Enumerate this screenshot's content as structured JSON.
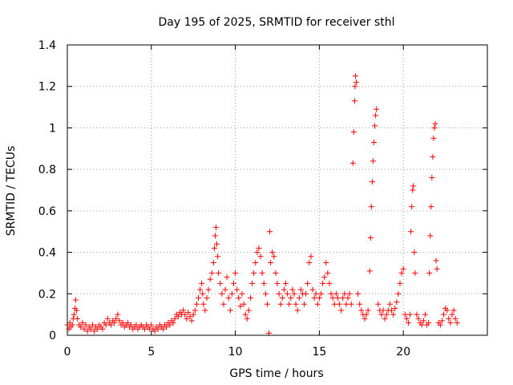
{
  "chart_data": {
    "type": "scatter",
    "title": "Day 195 of 2025, SRMTID for receiver sthl",
    "xlabel": "GPS time / hours",
    "ylabel": "SRMTID / TECUs",
    "xlim": [
      0,
      25
    ],
    "ylim": [
      0,
      1.4
    ],
    "x_ticks": [
      "0",
      "5",
      "10",
      "15",
      "20"
    ],
    "y_ticks": [
      "0",
      "0.2",
      "0.4",
      "0.6",
      "0.8",
      "1",
      "1.2",
      "1.4"
    ],
    "grid": true,
    "marker": "+",
    "series": [
      {
        "name": "sthl",
        "color": "#ff0000",
        "points": [
          [
            0.0,
            0.05
          ],
          [
            0.1,
            0.03
          ],
          [
            0.15,
            0.06
          ],
          [
            0.2,
            0.04
          ],
          [
            0.3,
            0.05
          ],
          [
            0.35,
            0.08
          ],
          [
            0.4,
            0.1
          ],
          [
            0.45,
            0.13
          ],
          [
            0.5,
            0.17
          ],
          [
            0.55,
            0.12
          ],
          [
            0.6,
            0.08
          ],
          [
            0.7,
            0.05
          ],
          [
            0.8,
            0.04
          ],
          [
            0.9,
            0.06
          ],
          [
            1.0,
            0.03
          ],
          [
            1.1,
            0.05
          ],
          [
            1.2,
            0.02
          ],
          [
            1.3,
            0.04
          ],
          [
            1.4,
            0.03
          ],
          [
            1.5,
            0.05
          ],
          [
            1.6,
            0.02
          ],
          [
            1.7,
            0.04
          ],
          [
            1.8,
            0.03
          ],
          [
            1.9,
            0.05
          ],
          [
            2.0,
            0.04
          ],
          [
            2.1,
            0.03
          ],
          [
            2.2,
            0.06
          ],
          [
            2.3,
            0.05
          ],
          [
            2.4,
            0.08
          ],
          [
            2.5,
            0.06
          ],
          [
            2.6,
            0.05
          ],
          [
            2.7,
            0.07
          ],
          [
            2.8,
            0.06
          ],
          [
            2.9,
            0.08
          ],
          [
            3.0,
            0.1
          ],
          [
            3.1,
            0.07
          ],
          [
            3.2,
            0.05
          ],
          [
            3.3,
            0.06
          ],
          [
            3.4,
            0.04
          ],
          [
            3.5,
            0.05
          ],
          [
            3.6,
            0.06
          ],
          [
            3.7,
            0.04
          ],
          [
            3.8,
            0.05
          ],
          [
            3.9,
            0.03
          ],
          [
            4.0,
            0.04
          ],
          [
            4.1,
            0.05
          ],
          [
            4.2,
            0.03
          ],
          [
            4.3,
            0.04
          ],
          [
            4.4,
            0.05
          ],
          [
            4.5,
            0.04
          ],
          [
            4.6,
            0.03
          ],
          [
            4.7,
            0.05
          ],
          [
            4.8,
            0.04
          ],
          [
            4.9,
            0.03
          ],
          [
            5.0,
            0.05
          ],
          [
            5.1,
            0.03
          ],
          [
            5.2,
            0.02
          ],
          [
            5.3,
            0.04
          ],
          [
            5.4,
            0.03
          ],
          [
            5.5,
            0.05
          ],
          [
            5.6,
            0.04
          ],
          [
            5.7,
            0.03
          ],
          [
            5.8,
            0.05
          ],
          [
            5.9,
            0.04
          ],
          [
            6.0,
            0.06
          ],
          [
            6.1,
            0.05
          ],
          [
            6.2,
            0.07
          ],
          [
            6.3,
            0.06
          ],
          [
            6.4,
            0.08
          ],
          [
            6.5,
            0.1
          ],
          [
            6.6,
            0.09
          ],
          [
            6.7,
            0.11
          ],
          [
            6.8,
            0.1
          ],
          [
            6.9,
            0.12
          ],
          [
            7.0,
            0.1
          ],
          [
            7.1,
            0.08
          ],
          [
            7.2,
            0.11
          ],
          [
            7.3,
            0.09
          ],
          [
            7.4,
            0.07
          ],
          [
            7.5,
            0.1
          ],
          [
            7.6,
            0.12
          ],
          [
            7.7,
            0.15
          ],
          [
            7.8,
            0.18
          ],
          [
            7.9,
            0.22
          ],
          [
            8.0,
            0.25
          ],
          [
            8.05,
            0.2
          ],
          [
            8.1,
            0.15
          ],
          [
            8.2,
            0.12
          ],
          [
            8.3,
            0.18
          ],
          [
            8.4,
            0.22
          ],
          [
            8.5,
            0.27
          ],
          [
            8.6,
            0.3
          ],
          [
            8.7,
            0.35
          ],
          [
            8.75,
            0.42
          ],
          [
            8.8,
            0.48
          ],
          [
            8.85,
            0.52
          ],
          [
            8.9,
            0.44
          ],
          [
            8.95,
            0.38
          ],
          [
            9.0,
            0.3
          ],
          [
            9.1,
            0.25
          ],
          [
            9.2,
            0.2
          ],
          [
            9.3,
            0.15
          ],
          [
            9.4,
            0.22
          ],
          [
            9.5,
            0.28
          ],
          [
            9.6,
            0.18
          ],
          [
            9.7,
            0.12
          ],
          [
            9.8,
            0.2
          ],
          [
            9.9,
            0.25
          ],
          [
            10.0,
            0.3
          ],
          [
            10.1,
            0.22
          ],
          [
            10.2,
            0.18
          ],
          [
            10.3,
            0.14
          ],
          [
            10.4,
            0.2
          ],
          [
            10.5,
            0.15
          ],
          [
            10.6,
            0.1
          ],
          [
            10.7,
            0.08
          ],
          [
            10.8,
            0.12
          ],
          [
            10.9,
            0.18
          ],
          [
            11.0,
            0.25
          ],
          [
            11.1,
            0.3
          ],
          [
            11.2,
            0.35
          ],
          [
            11.3,
            0.4
          ],
          [
            11.4,
            0.42
          ],
          [
            11.5,
            0.38
          ],
          [
            11.6,
            0.3
          ],
          [
            11.7,
            0.25
          ],
          [
            11.8,
            0.2
          ],
          [
            11.9,
            0.15
          ],
          [
            12.0,
            0.01
          ],
          [
            12.05,
            0.5
          ],
          [
            12.1,
            0.35
          ],
          [
            12.2,
            0.4
          ],
          [
            12.3,
            0.38
          ],
          [
            12.4,
            0.3
          ],
          [
            12.5,
            0.25
          ],
          [
            12.6,
            0.2
          ],
          [
            12.7,
            0.15
          ],
          [
            12.8,
            0.18
          ],
          [
            12.9,
            0.22
          ],
          [
            13.0,
            0.25
          ],
          [
            13.1,
            0.2
          ],
          [
            13.2,
            0.15
          ],
          [
            13.3,
            0.18
          ],
          [
            13.4,
            0.22
          ],
          [
            13.5,
            0.2
          ],
          [
            13.6,
            0.15
          ],
          [
            13.7,
            0.12
          ],
          [
            13.8,
            0.18
          ],
          [
            13.9,
            0.22
          ],
          [
            14.0,
            0.2
          ],
          [
            14.1,
            0.15
          ],
          [
            14.2,
            0.2
          ],
          [
            14.3,
            0.25
          ],
          [
            14.4,
            0.35
          ],
          [
            14.5,
            0.38
          ],
          [
            14.6,
            0.22
          ],
          [
            14.7,
            0.18
          ],
          [
            14.8,
            0.2
          ],
          [
            14.9,
            0.15
          ],
          [
            15.0,
            0.18
          ],
          [
            15.1,
            0.2
          ],
          [
            15.2,
            0.25
          ],
          [
            15.3,
            0.28
          ],
          [
            15.4,
            0.35
          ],
          [
            15.5,
            0.3
          ],
          [
            15.6,
            0.25
          ],
          [
            15.7,
            0.2
          ],
          [
            15.8,
            0.18
          ],
          [
            15.9,
            0.15
          ],
          [
            16.0,
            0.2
          ],
          [
            16.1,
            0.18
          ],
          [
            16.2,
            0.15
          ],
          [
            16.3,
            0.12
          ],
          [
            16.4,
            0.18
          ],
          [
            16.5,
            0.2
          ],
          [
            16.6,
            0.15
          ],
          [
            16.7,
            0.18
          ],
          [
            16.8,
            0.2
          ],
          [
            16.9,
            0.15
          ],
          [
            17.0,
            0.83
          ],
          [
            17.05,
            0.98
          ],
          [
            17.1,
            1.13
          ],
          [
            17.12,
            1.2
          ],
          [
            17.15,
            1.25
          ],
          [
            17.2,
            1.22
          ],
          [
            17.3,
            0.2
          ],
          [
            17.4,
            0.15
          ],
          [
            17.5,
            0.12
          ],
          [
            17.6,
            0.1
          ],
          [
            17.7,
            0.08
          ],
          [
            17.8,
            0.1
          ],
          [
            17.9,
            0.12
          ],
          [
            18.0,
            0.31
          ],
          [
            18.05,
            0.47
          ],
          [
            18.1,
            0.62
          ],
          [
            18.15,
            0.74
          ],
          [
            18.2,
            0.84
          ],
          [
            18.25,
            0.93
          ],
          [
            18.3,
            1.01
          ],
          [
            18.35,
            1.06
          ],
          [
            18.4,
            1.09
          ],
          [
            18.5,
            0.15
          ],
          [
            18.6,
            0.12
          ],
          [
            18.7,
            0.1
          ],
          [
            18.8,
            0.12
          ],
          [
            18.9,
            0.08
          ],
          [
            19.0,
            0.1
          ],
          [
            19.1,
            0.12
          ],
          [
            19.2,
            0.15
          ],
          [
            19.3,
            0.12
          ],
          [
            19.4,
            0.1
          ],
          [
            19.5,
            0.13
          ],
          [
            19.6,
            0.16
          ],
          [
            19.7,
            0.2
          ],
          [
            19.8,
            0.25
          ],
          [
            19.9,
            0.3
          ],
          [
            20.0,
            0.32
          ],
          [
            20.1,
            0.1
          ],
          [
            20.2,
            0.08
          ],
          [
            20.3,
            0.06
          ],
          [
            20.4,
            0.1
          ],
          [
            20.45,
            0.5
          ],
          [
            20.5,
            0.62
          ],
          [
            20.55,
            0.7
          ],
          [
            20.6,
            0.72
          ],
          [
            20.65,
            0.4
          ],
          [
            20.7,
            0.3
          ],
          [
            20.8,
            0.1
          ],
          [
            20.9,
            0.08
          ],
          [
            21.0,
            0.06
          ],
          [
            21.1,
            0.05
          ],
          [
            21.2,
            0.07
          ],
          [
            21.3,
            0.1
          ],
          [
            21.4,
            0.05
          ],
          [
            21.5,
            0.06
          ],
          [
            21.55,
            0.3
          ],
          [
            21.6,
            0.48
          ],
          [
            21.65,
            0.62
          ],
          [
            21.7,
            0.76
          ],
          [
            21.75,
            0.86
          ],
          [
            21.8,
            0.95
          ],
          [
            21.85,
            1.0
          ],
          [
            21.9,
            1.02
          ],
          [
            21.95,
            0.36
          ],
          [
            22.0,
            0.32
          ],
          [
            22.1,
            0.06
          ],
          [
            22.2,
            0.05
          ],
          [
            22.3,
            0.07
          ],
          [
            22.4,
            0.1
          ],
          [
            22.5,
            0.13
          ],
          [
            22.6,
            0.12
          ],
          [
            22.7,
            0.08
          ],
          [
            22.8,
            0.06
          ],
          [
            22.9,
            0.1
          ],
          [
            23.0,
            0.12
          ],
          [
            23.1,
            0.08
          ],
          [
            23.2,
            0.06
          ]
        ]
      }
    ]
  }
}
